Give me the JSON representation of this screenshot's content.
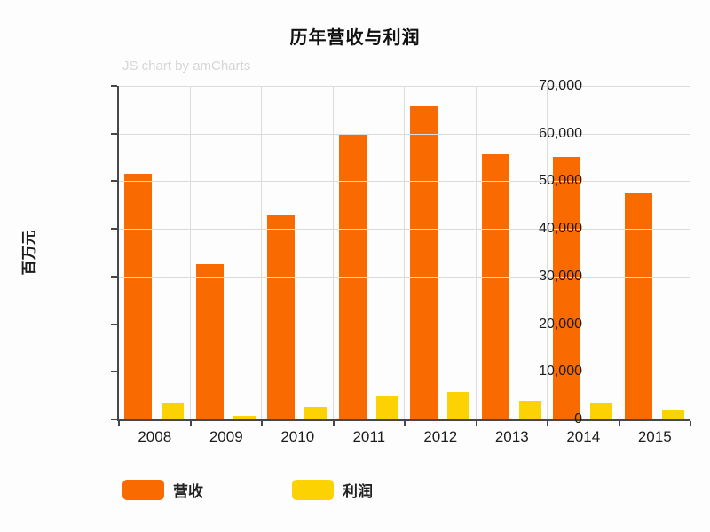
{
  "title": "历年营收与利润",
  "watermark": "JS chart by amCharts",
  "colors": {
    "grid": "#dcdcdc",
    "axis": "#45474b",
    "text": "#1c1c1c",
    "watermark": "#d6d6d6",
    "background": "#fdfdfd"
  },
  "chart_data": {
    "type": "bar",
    "title": "历年营收与利润",
    "xlabel": "",
    "ylabel": "百万元",
    "categories": [
      "2008",
      "2009",
      "2010",
      "2011",
      "2012",
      "2013",
      "2014",
      "2015"
    ],
    "series": [
      {
        "key": "revenue",
        "name": "营收",
        "color": "#f96a01",
        "values": [
          51500,
          32500,
          43000,
          60000,
          66000,
          55700,
          55100,
          47500
        ]
      },
      {
        "key": "profit",
        "name": "利润",
        "color": "#fcd202",
        "values": [
          3500,
          800,
          2600,
          4800,
          5800,
          4000,
          3600,
          2100
        ]
      }
    ],
    "ylim": [
      0,
      70000
    ],
    "yticks": [
      "0",
      "10,000",
      "20,000",
      "30,000",
      "40,000",
      "50,000",
      "60,000",
      "70,000"
    ],
    "grid": true,
    "legend_position": "bottom"
  }
}
